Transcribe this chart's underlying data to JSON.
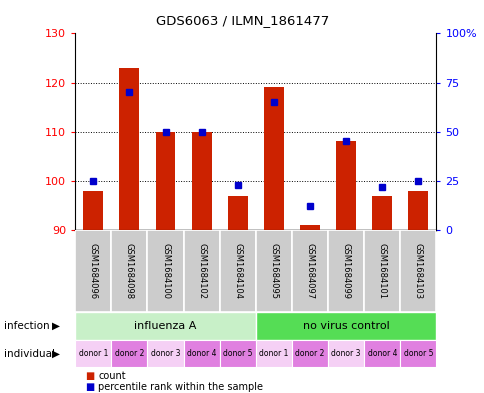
{
  "title": "GDS6063 / ILMN_1861477",
  "samples": [
    "GSM1684096",
    "GSM1684098",
    "GSM1684100",
    "GSM1684102",
    "GSM1684104",
    "GSM1684095",
    "GSM1684097",
    "GSM1684099",
    "GSM1684101",
    "GSM1684103"
  ],
  "count_values": [
    98,
    123,
    110,
    110,
    97,
    119,
    91,
    108,
    97,
    98
  ],
  "percentile_values": [
    25,
    70,
    50,
    50,
    23,
    65,
    12,
    45,
    22,
    25
  ],
  "ylim_left": [
    90,
    130
  ],
  "ylim_right": [
    0,
    100
  ],
  "yticks_left": [
    90,
    100,
    110,
    120,
    130
  ],
  "yticks_right": [
    0,
    25,
    50,
    75,
    100
  ],
  "ytick_labels_right": [
    "0",
    "25",
    "50",
    "75",
    "100%"
  ],
  "infection_groups": [
    {
      "label": "influenza A",
      "start": 0,
      "end": 5
    },
    {
      "label": "no virus control",
      "start": 5,
      "end": 10
    }
  ],
  "individual_labels": [
    "donor 1",
    "donor 2",
    "donor 3",
    "donor 4",
    "donor 5",
    "donor 1",
    "donor 2",
    "donor 3",
    "donor 4",
    "donor 5"
  ],
  "bar_color": "#cc2200",
  "dot_color": "#0000cc",
  "infection_color_1": "#c8f0c8",
  "infection_color_2": "#55dd55",
  "sample_bg_color": "#cccccc",
  "sample_border_color": "#999999",
  "ind_color_light": "#f5d0f5",
  "ind_color_dark": "#e080e0",
  "bar_width": 0.55
}
